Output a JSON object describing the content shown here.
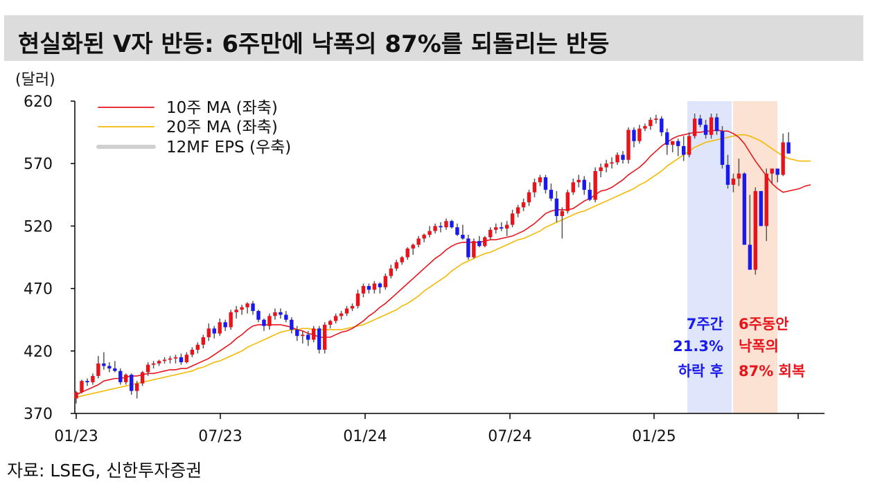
{
  "title": "현실화된 V자 반등: 6주만에 낙폭의 87%를 되돌리는 반등",
  "source": "자료: LSEG, 신한투자증권",
  "chart_data": {
    "type": "candlestick",
    "unit_label": "(달러)",
    "ylim": [
      370,
      620
    ],
    "yticks": [
      370,
      420,
      470,
      520,
      570,
      620
    ],
    "xticks": [
      "01/23",
      "07/23",
      "01/24",
      "07/24",
      "01/25"
    ],
    "legend": [
      {
        "name": "10주 MA (좌축)",
        "color": "#e8141c"
      },
      {
        "name": "20주 MA (좌축)",
        "color": "#f5b800"
      },
      {
        "name": "12MF EPS (우축)",
        "color": "#d0d0d0"
      }
    ],
    "colors": {
      "up": "#e8141c",
      "down": "#1a1aee",
      "wick": "#555555",
      "decline_zone": "#dfe6fb",
      "recovery_zone": "#fbe2d3"
    },
    "annotations": {
      "decline": [
        "7주간",
        "21.3%",
        "하락 후"
      ],
      "recovery": [
        "6주동안",
        "낙폭의",
        "87% 회복"
      ]
    },
    "weekly_candles": [
      [
        382,
        388,
        378,
        387
      ],
      [
        387,
        397,
        386,
        396
      ],
      [
        396,
        398,
        392,
        395
      ],
      [
        395,
        402,
        393,
        400
      ],
      [
        400,
        416,
        398,
        410
      ],
      [
        410,
        419,
        405,
        408
      ],
      [
        408,
        411,
        403,
        406
      ],
      [
        406,
        412,
        403,
        404
      ],
      [
        404,
        406,
        393,
        395
      ],
      [
        395,
        402,
        393,
        401
      ],
      [
        401,
        402,
        385,
        388
      ],
      [
        388,
        396,
        382,
        394
      ],
      [
        394,
        404,
        392,
        403
      ],
      [
        403,
        411,
        400,
        409
      ],
      [
        409,
        412,
        406,
        410
      ],
      [
        410,
        413,
        408,
        412
      ],
      [
        412,
        415,
        410,
        413
      ],
      [
        413,
        416,
        410,
        414
      ],
      [
        414,
        417,
        410,
        415
      ],
      [
        415,
        418,
        409,
        411
      ],
      [
        411,
        419,
        410,
        417
      ],
      [
        417,
        423,
        415,
        421
      ],
      [
        421,
        427,
        418,
        425
      ],
      [
        425,
        433,
        422,
        431
      ],
      [
        431,
        442,
        428,
        438
      ],
      [
        438,
        440,
        430,
        434
      ],
      [
        434,
        446,
        432,
        443
      ],
      [
        443,
        445,
        436,
        439
      ],
      [
        439,
        453,
        437,
        451
      ],
      [
        451,
        456,
        446,
        453
      ],
      [
        453,
        457,
        449,
        455
      ],
      [
        455,
        459,
        450,
        458
      ],
      [
        458,
        460,
        449,
        452
      ],
      [
        452,
        453,
        443,
        445
      ],
      [
        445,
        446,
        436,
        440
      ],
      [
        440,
        450,
        437,
        448
      ],
      [
        448,
        454,
        445,
        451
      ],
      [
        451,
        454,
        446,
        449
      ],
      [
        449,
        452,
        443,
        445
      ],
      [
        445,
        447,
        434,
        437
      ],
      [
        437,
        440,
        428,
        432
      ],
      [
        432,
        436,
        426,
        433
      ],
      [
        433,
        436,
        424,
        429
      ],
      [
        429,
        440,
        427,
        438
      ],
      [
        438,
        440,
        418,
        421
      ],
      [
        421,
        443,
        418,
        441
      ],
      [
        441,
        445,
        438,
        444
      ],
      [
        444,
        450,
        442,
        448
      ],
      [
        448,
        452,
        445,
        450
      ],
      [
        450,
        456,
        448,
        454
      ],
      [
        454,
        458,
        452,
        456
      ],
      [
        456,
        469,
        454,
        466
      ],
      [
        466,
        474,
        463,
        472
      ],
      [
        472,
        474,
        466,
        469
      ],
      [
        469,
        476,
        466,
        474
      ],
      [
        474,
        475,
        466,
        471
      ],
      [
        471,
        482,
        469,
        480
      ],
      [
        480,
        489,
        478,
        486
      ],
      [
        486,
        493,
        484,
        491
      ],
      [
        491,
        496,
        489,
        495
      ],
      [
        495,
        503,
        493,
        502
      ],
      [
        502,
        506,
        497,
        505
      ],
      [
        505,
        512,
        503,
        510
      ],
      [
        510,
        514,
        507,
        513
      ],
      [
        513,
        520,
        511,
        516
      ],
      [
        516,
        522,
        514,
        520
      ],
      [
        520,
        523,
        515,
        519
      ],
      [
        519,
        526,
        517,
        524
      ],
      [
        524,
        525,
        518,
        519
      ],
      [
        519,
        522,
        512,
        513
      ],
      [
        513,
        521,
        509,
        510
      ],
      [
        510,
        513,
        493,
        495
      ],
      [
        495,
        510,
        494,
        508
      ],
      [
        508,
        512,
        503,
        504
      ],
      [
        504,
        512,
        503,
        511
      ],
      [
        511,
        519,
        509,
        517
      ],
      [
        517,
        522,
        514,
        519
      ],
      [
        519,
        523,
        516,
        518
      ],
      [
        518,
        524,
        512,
        521
      ],
      [
        521,
        533,
        519,
        530
      ],
      [
        530,
        537,
        527,
        535
      ],
      [
        535,
        542,
        532,
        539
      ],
      [
        539,
        549,
        536,
        547
      ],
      [
        547,
        558,
        543,
        555
      ],
      [
        555,
        561,
        552,
        559
      ],
      [
        559,
        561,
        546,
        549
      ],
      [
        549,
        554,
        540,
        542
      ],
      [
        542,
        548,
        523,
        528
      ],
      [
        528,
        535,
        510,
        532
      ],
      [
        532,
        549,
        530,
        547
      ],
      [
        547,
        558,
        545,
        555
      ],
      [
        555,
        561,
        551,
        557
      ],
      [
        557,
        560,
        545,
        549
      ],
      [
        549,
        555,
        540,
        541
      ],
      [
        541,
        567,
        539,
        564
      ],
      [
        564,
        570,
        559,
        567
      ],
      [
        567,
        573,
        563,
        570
      ],
      [
        570,
        575,
        566,
        571
      ],
      [
        571,
        579,
        569,
        577
      ],
      [
        577,
        580,
        570,
        573
      ],
      [
        573,
        599,
        570,
        597
      ],
      [
        597,
        599,
        583,
        588
      ],
      [
        588,
        601,
        586,
        598
      ],
      [
        598,
        602,
        596,
        600
      ],
      [
        600,
        607,
        597,
        605
      ],
      [
        605,
        609,
        602,
        606
      ],
      [
        606,
        608,
        592,
        595
      ],
      [
        595,
        598,
        577,
        585
      ],
      [
        585,
        588,
        579,
        588
      ],
      [
        588,
        590,
        576,
        584
      ],
      [
        584,
        592,
        572,
        577
      ],
      [
        577,
        595,
        575,
        592
      ],
      [
        592,
        610,
        590,
        606
      ],
      [
        606,
        609,
        599,
        601
      ],
      [
        601,
        605,
        590,
        593
      ],
      [
        593,
        610,
        590,
        607
      ],
      [
        607,
        610,
        593,
        596
      ],
      [
        596,
        600,
        566,
        569
      ],
      [
        569,
        577,
        550,
        553
      ],
      [
        553,
        562,
        547,
        558
      ],
      [
        558,
        574,
        552,
        562
      ],
      [
        562,
        563,
        515,
        505
      ],
      [
        505,
        545,
        487,
        485
      ],
      [
        485,
        551,
        481,
        548
      ],
      [
        548,
        548,
        520,
        520
      ],
      [
        520,
        566,
        508,
        562
      ],
      [
        562,
        564,
        554,
        566
      ],
      [
        566,
        566,
        555,
        561
      ],
      [
        561,
        594,
        560,
        587
      ],
      [
        587,
        595,
        580,
        578
      ]
    ],
    "ma10": [
      385,
      387,
      389,
      391,
      393,
      396,
      397,
      398,
      398,
      399,
      400,
      400,
      401,
      402,
      402,
      403,
      404,
      405,
      405,
      406,
      406,
      408,
      410,
      412,
      414,
      417,
      420,
      423,
      426,
      430,
      433,
      437,
      440,
      441,
      441,
      441,
      441,
      441,
      440,
      439,
      437,
      436,
      434,
      433,
      431,
      431,
      431,
      433,
      435,
      436,
      438,
      441,
      444,
      448,
      451,
      455,
      458,
      462,
      466,
      470,
      474,
      478,
      482,
      486,
      490,
      494,
      497,
      501,
      504,
      506,
      507,
      507,
      507,
      507,
      508,
      509,
      509,
      510,
      511,
      512,
      514,
      516,
      519,
      522,
      526,
      530,
      532,
      533,
      533,
      533,
      534,
      537,
      540,
      542,
      545,
      548,
      549,
      551,
      554,
      557,
      561,
      564,
      567,
      571,
      576,
      580,
      584,
      587,
      590,
      592,
      593,
      594,
      595,
      595,
      596,
      596,
      597,
      596,
      596,
      594,
      591,
      586,
      579,
      572,
      566,
      560,
      554,
      550,
      547,
      548,
      549,
      550,
      552,
      553
    ],
    "ma20": [
      383,
      384,
      385,
      386,
      387,
      388,
      389,
      390,
      391,
      392,
      393,
      394,
      395,
      396,
      397,
      398,
      399,
      400,
      401,
      402,
      403,
      404,
      406,
      407,
      409,
      411,
      412,
      414,
      416,
      418,
      420,
      423,
      425,
      427,
      429,
      431,
      433,
      435,
      436,
      437,
      437,
      438,
      438,
      437,
      437,
      437,
      437,
      437,
      437,
      438,
      439,
      440,
      441,
      443,
      445,
      447,
      449,
      451,
      453,
      456,
      458,
      461,
      464,
      468,
      471,
      474,
      477,
      480,
      484,
      487,
      490,
      492,
      494,
      496,
      498,
      499,
      501,
      503,
      505,
      507,
      509,
      510,
      512,
      514,
      516,
      519,
      521,
      523,
      525,
      527,
      529,
      531,
      532,
      534,
      536,
      538,
      540,
      542,
      544,
      546,
      548,
      550,
      553,
      555,
      558,
      561,
      564,
      568,
      571,
      574,
      577,
      580,
      583,
      585,
      587,
      588,
      589,
      590,
      591,
      592,
      593,
      593,
      592,
      590,
      588,
      585,
      582,
      579,
      576,
      574,
      573,
      572,
      572,
      572
    ]
  }
}
